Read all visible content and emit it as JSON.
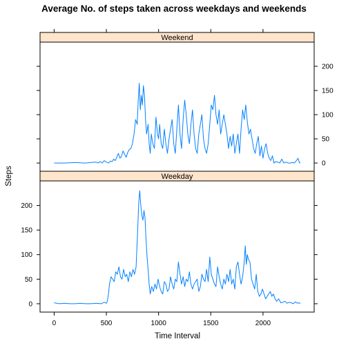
{
  "chart_data": {
    "type": "line",
    "title": "Average No. of steps taken across weekdays and weekends",
    "xlabel": "Time Interval",
    "ylabel": "Steps",
    "xlim": [
      -135,
      2490
    ],
    "ylim": [
      -17,
      250
    ],
    "x_ticks": [
      0,
      500,
      1000,
      1500,
      2000
    ],
    "y_ticks": [
      0,
      50,
      100,
      150,
      200
    ],
    "line_color": "#0080ff",
    "strip_color": "#ffe5cc",
    "panels": [
      {
        "name": "Weekend",
        "y_tick_side": "right",
        "x": [
          0,
          100,
          200,
          300,
          400,
          420,
          440,
          460,
          480,
          500,
          520,
          540,
          555,
          570,
          585,
          600,
          615,
          630,
          645,
          660,
          675,
          690,
          705,
          720,
          735,
          750,
          765,
          780,
          795,
          805,
          815,
          825,
          835,
          845,
          855,
          865,
          875,
          885,
          900,
          910,
          920,
          930,
          945,
          960,
          975,
          990,
          1000,
          1010,
          1025,
          1040,
          1055,
          1070,
          1085,
          1100,
          1115,
          1130,
          1145,
          1160,
          1175,
          1190,
          1205,
          1220,
          1235,
          1250,
          1265,
          1280,
          1295,
          1310,
          1325,
          1340,
          1355,
          1370,
          1385,
          1400,
          1415,
          1430,
          1445,
          1460,
          1475,
          1490,
          1505,
          1520,
          1535,
          1550,
          1565,
          1580,
          1595,
          1610,
          1625,
          1640,
          1655,
          1670,
          1685,
          1700,
          1715,
          1730,
          1745,
          1760,
          1775,
          1790,
          1805,
          1820,
          1835,
          1850,
          1865,
          1880,
          1895,
          1910,
          1925,
          1940,
          1955,
          1970,
          1985,
          2000,
          2015,
          2030,
          2045,
          2060,
          2075,
          2090,
          2105,
          2120,
          2140,
          2160,
          2180,
          2200,
          2220,
          2240,
          2260,
          2280,
          2300,
          2320,
          2335,
          2350,
          2355
        ],
        "values": [
          0,
          0,
          1,
          0,
          2,
          0,
          3,
          0,
          5,
          2,
          0,
          4,
          3,
          8,
          5,
          12,
          20,
          10,
          14,
          25,
          18,
          12,
          22,
          28,
          30,
          40,
          60,
          90,
          80,
          130,
          165,
          110,
          140,
          120,
          160,
          140,
          90,
          60,
          80,
          40,
          20,
          60,
          40,
          30,
          95,
          60,
          50,
          80,
          40,
          30,
          70,
          40,
          20,
          50,
          70,
          90,
          40,
          20,
          70,
          120,
          60,
          30,
          90,
          130,
          100,
          60,
          40,
          80,
          110,
          60,
          30,
          20,
          60,
          80,
          100,
          50,
          30,
          20,
          40,
          80,
          120,
          110,
          140,
          100,
          80,
          110,
          60,
          80,
          100,
          80,
          60,
          30,
          55,
          35,
          60,
          20,
          40,
          60,
          20,
          70,
          110,
          90,
          120,
          85,
          60,
          70,
          50,
          30,
          20,
          40,
          55,
          15,
          35,
          10,
          30,
          40,
          20,
          10,
          5,
          15,
          0,
          3,
          2,
          0,
          8,
          0,
          2,
          0,
          0,
          1,
          0,
          5,
          10,
          0,
          2
        ]
      },
      {
        "name": "Weekday",
        "y_tick_side": "left",
        "x": [
          0,
          50,
          100,
          150,
          200,
          250,
          300,
          350,
          400,
          450,
          480,
          500,
          510,
          520,
          530,
          545,
          560,
          575,
          590,
          605,
          620,
          635,
          650,
          665,
          680,
          695,
          710,
          725,
          740,
          755,
          770,
          785,
          800,
          810,
          820,
          830,
          840,
          850,
          860,
          870,
          880,
          890,
          900,
          910,
          920,
          935,
          950,
          965,
          980,
          995,
          1010,
          1025,
          1040,
          1055,
          1070,
          1085,
          1100,
          1115,
          1130,
          1145,
          1160,
          1175,
          1190,
          1205,
          1220,
          1235,
          1250,
          1265,
          1280,
          1295,
          1310,
          1325,
          1340,
          1355,
          1370,
          1385,
          1400,
          1415,
          1430,
          1445,
          1460,
          1475,
          1490,
          1505,
          1520,
          1535,
          1550,
          1565,
          1580,
          1595,
          1610,
          1625,
          1640,
          1655,
          1670,
          1685,
          1700,
          1715,
          1730,
          1745,
          1760,
          1775,
          1790,
          1805,
          1820,
          1830,
          1840,
          1850,
          1860,
          1875,
          1890,
          1905,
          1920,
          1935,
          1950,
          1965,
          1980,
          1995,
          2010,
          2025,
          2040,
          2055,
          2070,
          2085,
          2100,
          2115,
          2130,
          2150,
          2170,
          2190,
          2210,
          2230,
          2250,
          2270,
          2290,
          2310,
          2330,
          2350,
          2355
        ],
        "values": [
          2,
          0,
          1,
          0,
          0,
          1,
          0,
          0,
          1,
          0,
          3,
          1,
          5,
          20,
          40,
          55,
          50,
          45,
          65,
          60,
          75,
          55,
          50,
          70,
          55,
          60,
          45,
          65,
          55,
          70,
          60,
          75,
          150,
          205,
          230,
          200,
          180,
          170,
          190,
          175,
          130,
          95,
          70,
          40,
          20,
          35,
          25,
          40,
          30,
          50,
          35,
          25,
          20,
          45,
          40,
          25,
          30,
          55,
          40,
          30,
          50,
          45,
          85,
          60,
          40,
          55,
          35,
          50,
          45,
          65,
          40,
          30,
          40,
          45,
          50,
          25,
          35,
          60,
          50,
          45,
          70,
          45,
          95,
          60,
          50,
          40,
          35,
          75,
          55,
          40,
          30,
          50,
          40,
          60,
          45,
          70,
          40,
          50,
          30,
          75,
          85,
          60,
          40,
          55,
          85,
          118,
          80,
          100,
          90,
          85,
          50,
          40,
          30,
          60,
          25,
          15,
          20,
          30,
          20,
          10,
          15,
          20,
          25,
          15,
          20,
          10,
          5,
          10,
          2,
          3,
          5,
          1,
          3,
          2,
          0,
          4,
          1,
          2,
          0
        ]
      }
    ]
  }
}
